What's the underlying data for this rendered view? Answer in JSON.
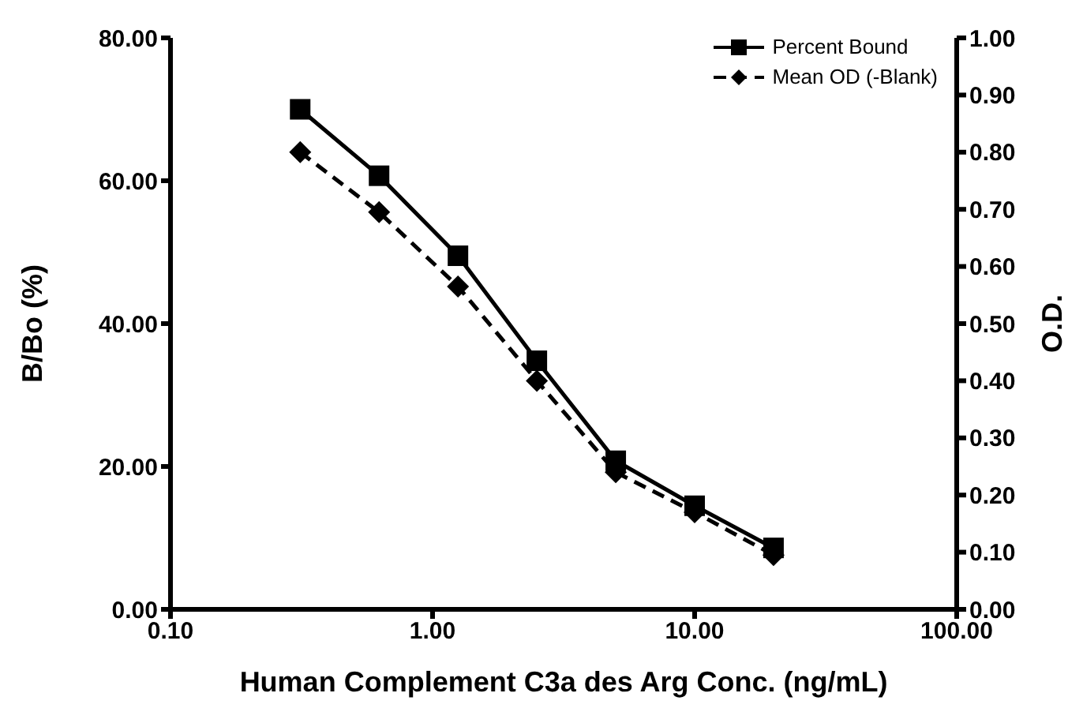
{
  "chart_data": {
    "type": "line",
    "xlabel": "Human Complement C3a des Arg Conc. (ng/mL)",
    "ylabel": "B/Bo (%)",
    "y2label": "O.D.",
    "x": [
      0.3125,
      0.625,
      1.25,
      2.5,
      5,
      10,
      20
    ],
    "series": [
      {
        "name": "Percent Bound",
        "color": "#000000",
        "marker": "square",
        "line_style": "solid",
        "values": [
          70,
          60.7,
          49.5,
          34.8,
          20.8,
          14.5,
          8.6
        ]
      },
      {
        "name": "Mean OD (-Blank)",
        "color": "#000000",
        "marker": "diamond",
        "line_style": "dashed",
        "axis": "y2",
        "values": [
          0.8,
          0.695,
          0.565,
          0.4,
          0.24,
          0.17,
          0.095
        ]
      }
    ],
    "log": "x",
    "xlim": [
      0.1,
      100
    ],
    "xticks": [
      {
        "value": 0.1,
        "label": "0.10"
      },
      {
        "value": 1,
        "label": "1.00"
      },
      {
        "value": 10,
        "label": "10.00"
      },
      {
        "value": 100,
        "label": "100.00"
      }
    ],
    "ylim": [
      0,
      80
    ],
    "yticks": [
      {
        "value": 0,
        "label": "0.00"
      },
      {
        "value": 20,
        "label": "20.00"
      },
      {
        "value": 40,
        "label": "40.00"
      },
      {
        "value": 60,
        "label": "60.00"
      },
      {
        "value": 80,
        "label": "80.00"
      }
    ],
    "y2lim": [
      0,
      1
    ],
    "y2ticks": [
      {
        "value": 0,
        "label": "0.00"
      },
      {
        "value": 0.1,
        "label": "0.10"
      },
      {
        "value": 0.2,
        "label": "0.20"
      },
      {
        "value": 0.3,
        "label": "0.30"
      },
      {
        "value": 0.4,
        "label": "0.40"
      },
      {
        "value": 0.5,
        "label": "0.50"
      },
      {
        "value": 0.6,
        "label": "0.60"
      },
      {
        "value": 0.7,
        "label": "0.70"
      },
      {
        "value": 0.8,
        "label": "0.80"
      },
      {
        "value": 0.9,
        "label": "0.90"
      },
      {
        "value": 1,
        "label": "1.00"
      }
    ],
    "grid": false,
    "legend": "top right"
  }
}
